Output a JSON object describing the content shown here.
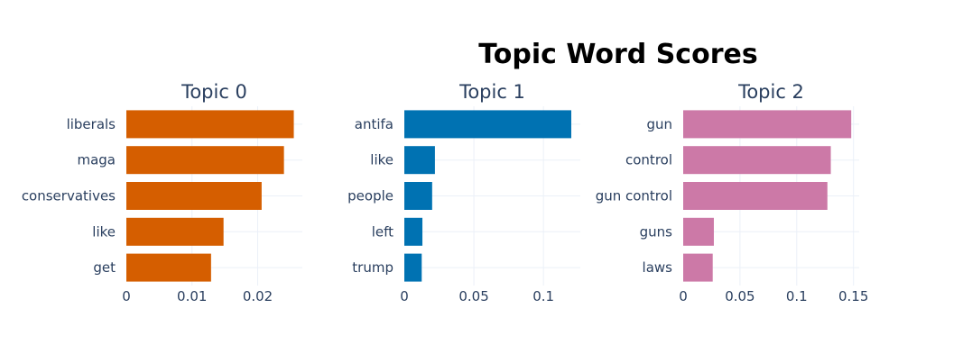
{
  "chart_data": {
    "type": "bar",
    "orientation": "horizontal",
    "title": "Topic Word Scores",
    "grid": true,
    "panels": [
      {
        "title": "Topic 0",
        "color": "#D55E00",
        "categories": [
          "liberals",
          "maga",
          "conservatives",
          "like",
          "get"
        ],
        "values": [
          0.0255,
          0.024,
          0.0206,
          0.0148,
          0.0129
        ],
        "xlim": [
          0,
          0.0268
        ],
        "ticks": [
          0,
          0.01,
          0.02
        ],
        "tick_labels": [
          "0",
          "0.01",
          "0.02"
        ]
      },
      {
        "title": "Topic 1",
        "color": "#0072B2",
        "categories": [
          "antifa",
          "like",
          "people",
          "left",
          "trump"
        ],
        "values": [
          0.12,
          0.022,
          0.02,
          0.013,
          0.0125
        ],
        "xlim": [
          0,
          0.1265
        ],
        "ticks": [
          0,
          0.05,
          0.1
        ],
        "tick_labels": [
          "0",
          "0.05",
          "0.1"
        ]
      },
      {
        "title": "Topic 2",
        "color": "#CC79A7",
        "categories": [
          "gun",
          "control",
          "gun control",
          "guns",
          "laws"
        ],
        "values": [
          0.148,
          0.13,
          0.127,
          0.027,
          0.026
        ],
        "xlim": [
          0,
          0.155
        ],
        "ticks": [
          0,
          0.05,
          0.1,
          0.15
        ],
        "tick_labels": [
          "0",
          "0.05",
          "0.1",
          "0.15"
        ]
      }
    ]
  }
}
